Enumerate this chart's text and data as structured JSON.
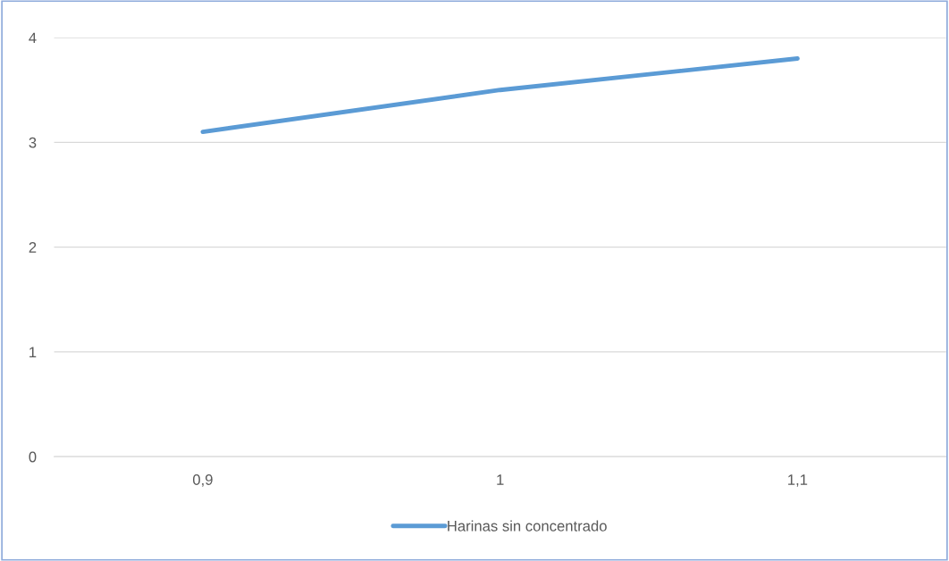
{
  "chart_data": {
    "type": "line",
    "categories": [
      "0,9",
      "1",
      "1,1"
    ],
    "series": [
      {
        "name": "Harinas sin concentrado",
        "color": "#5b9bd5",
        "values": [
          3.1,
          3.5,
          3.8
        ]
      }
    ],
    "ylim": [
      0,
      4
    ],
    "yticks": [
      0,
      1,
      2,
      3,
      4
    ],
    "grid": "y",
    "legend": "bottom",
    "marker": "none",
    "line_style": "solid"
  }
}
